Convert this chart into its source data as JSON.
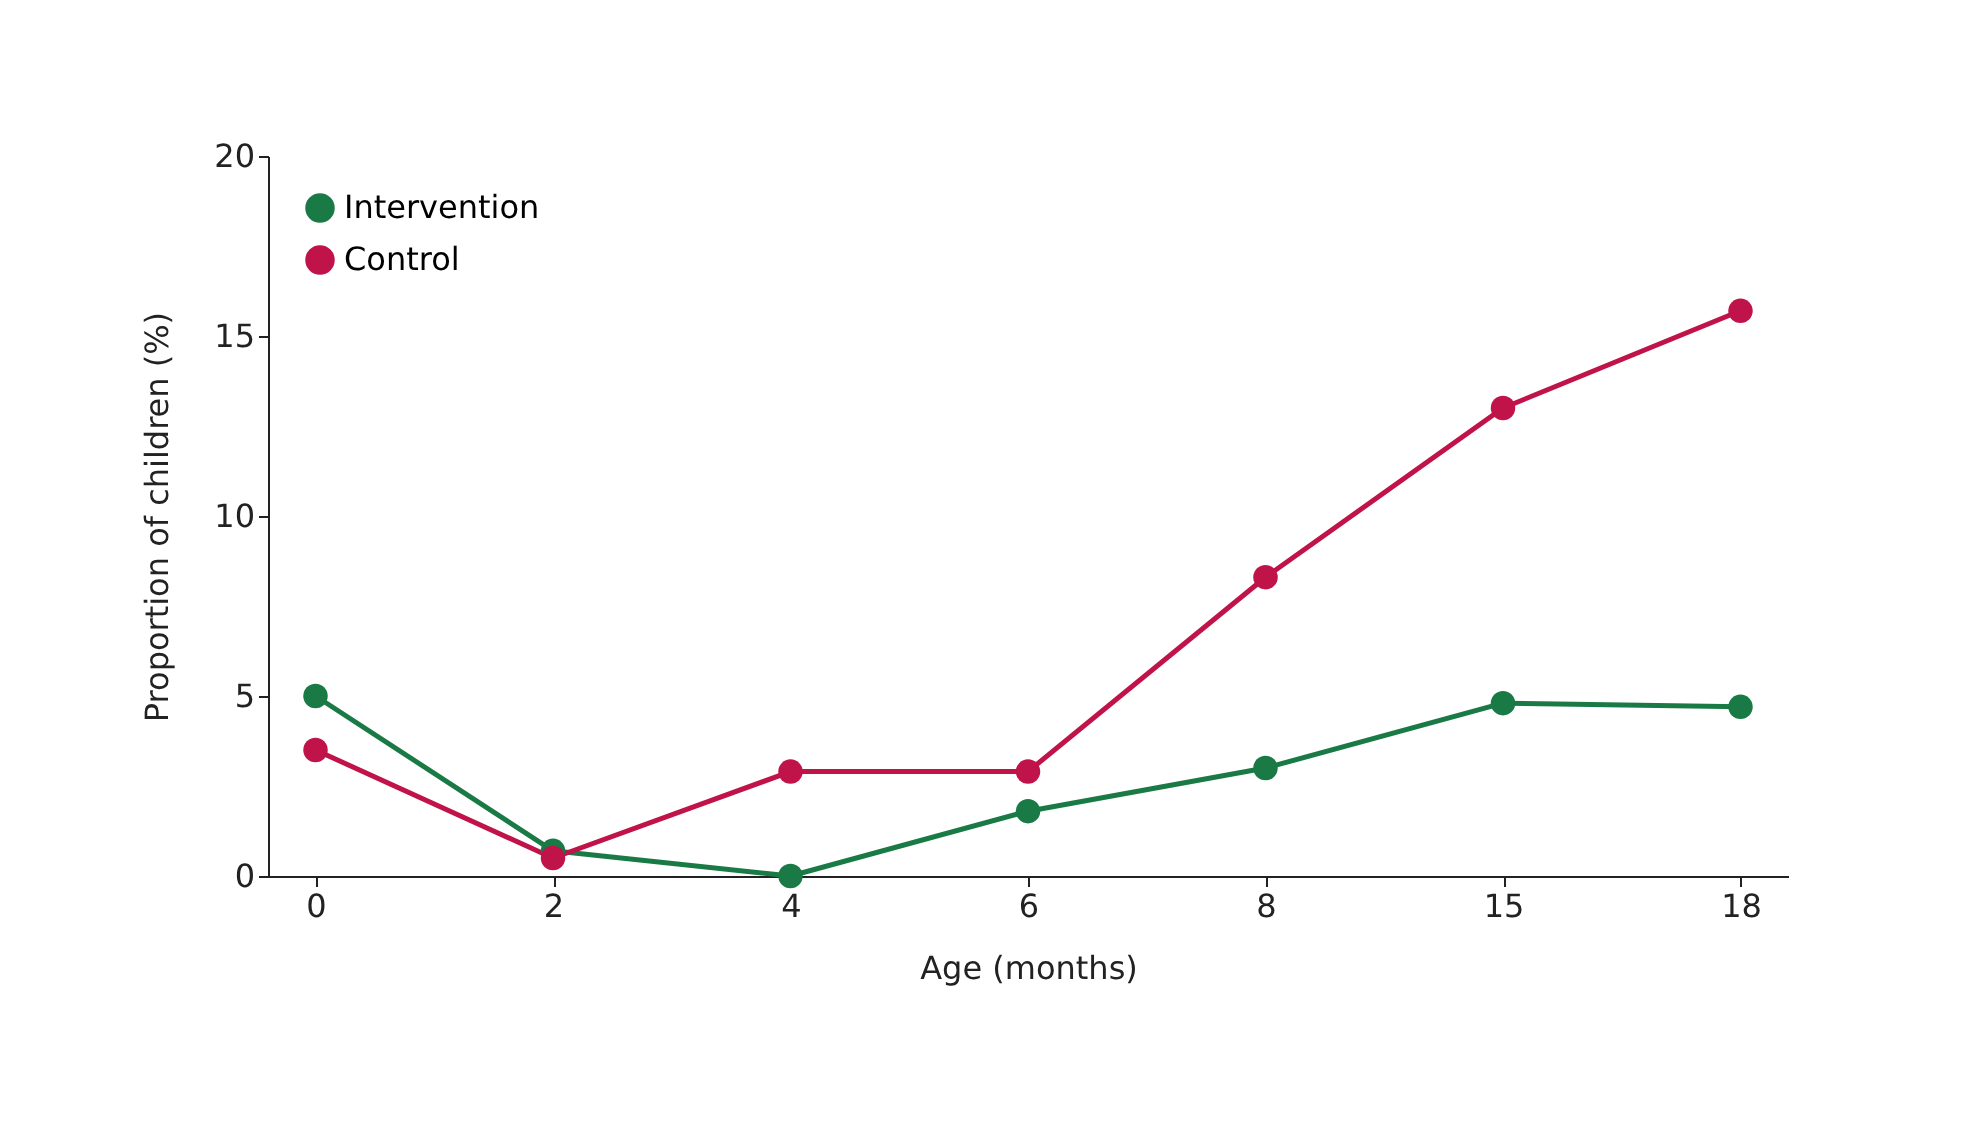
{
  "chart_data": {
    "type": "line",
    "xlabel": "Age (months)",
    "ylabel": "Proportion of children (%)",
    "categories": [
      "0",
      "2",
      "4",
      "6",
      "8",
      "15",
      "18"
    ],
    "series": [
      {
        "name": "Intervention",
        "color": "#1a7a45",
        "values": [
          5.0,
          0.7,
          0,
          1.8,
          3.0,
          4.8,
          4.7
        ]
      },
      {
        "name": "Control",
        "color": "#c0134a",
        "values": [
          3.5,
          0.5,
          2.9,
          2.9,
          8.3,
          13.0,
          15.7
        ]
      }
    ],
    "ylim": [
      0,
      20
    ],
    "yticks": [
      0,
      5,
      10,
      15,
      20
    ],
    "legend": "top left",
    "marker": "circle"
  }
}
